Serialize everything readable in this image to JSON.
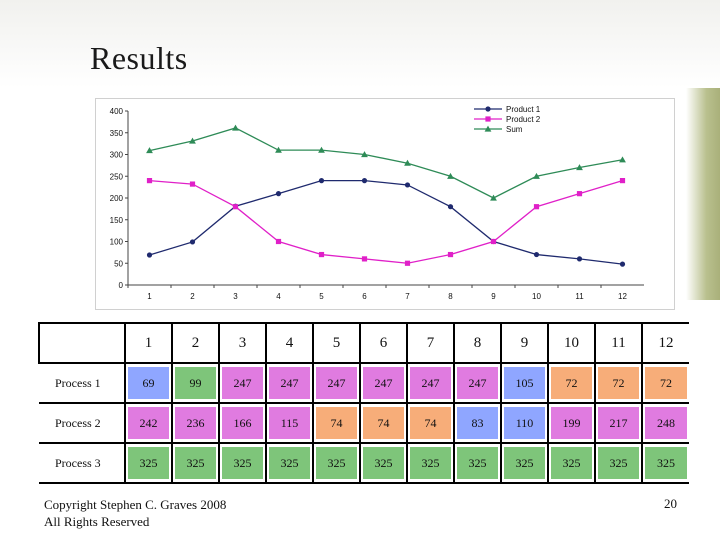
{
  "slide": {
    "title": "Results",
    "copyright_line1": "Copyright Stephen C. Graves 2008",
    "copyright_line2": "All Rights Reserved",
    "page_number": "20"
  },
  "chart_data": {
    "type": "line",
    "x": [
      "1",
      "2",
      "3",
      "4",
      "5",
      "6",
      "7",
      "8",
      "9",
      "10",
      "11",
      "12"
    ],
    "ylim": [
      0,
      400
    ],
    "yticks": [
      "0",
      "50",
      "100",
      "150",
      "200",
      "250",
      "300",
      "350",
      "400"
    ],
    "grid": false,
    "legend_position": "top-right",
    "series": [
      {
        "name": "Product 1",
        "color": "#1f2a6e",
        "marker": "circle",
        "values": [
          69,
          99,
          181,
          210,
          240,
          240,
          230,
          180,
          100,
          70,
          60,
          48
        ]
      },
      {
        "name": "Product 2",
        "color": "#e020c8",
        "marker": "square",
        "values": [
          240,
          232,
          180,
          100,
          70,
          60,
          50,
          70,
          100,
          180,
          210,
          240
        ]
      },
      {
        "name": "Sum",
        "color": "#2e8b57",
        "marker": "triangle",
        "values": [
          309,
          331,
          361,
          310,
          310,
          300,
          280,
          250,
          200,
          250,
          270,
          288
        ]
      }
    ]
  },
  "table": {
    "columns": [
      "1",
      "2",
      "3",
      "4",
      "5",
      "6",
      "7",
      "8",
      "9",
      "10",
      "11",
      "12"
    ],
    "rows": [
      {
        "label": "Process 1",
        "values": [
          "69",
          "99",
          "247",
          "247",
          "247",
          "247",
          "247",
          "247",
          "105",
          "72",
          "72",
          "72"
        ],
        "colors": [
          "blue",
          "green",
          "pink",
          "pink",
          "pink",
          "pink",
          "pink",
          "pink",
          "blue",
          "orange",
          "orange",
          "orange"
        ]
      },
      {
        "label": "Process 2",
        "values": [
          "242",
          "236",
          "166",
          "115",
          "74",
          "74",
          "74",
          "83",
          "110",
          "199",
          "217",
          "248"
        ],
        "colors": [
          "pink",
          "pink",
          "pink",
          "pink",
          "orange",
          "orange",
          "orange",
          "blue",
          "blue",
          "pink",
          "pink",
          "pink"
        ]
      },
      {
        "label": "Process 3",
        "values": [
          "325",
          "325",
          "325",
          "325",
          "325",
          "325",
          "325",
          "325",
          "325",
          "325",
          "325",
          "325"
        ],
        "colors": [
          "green",
          "green",
          "green",
          "green",
          "green",
          "green",
          "green",
          "green",
          "green",
          "green",
          "green",
          "green"
        ]
      }
    ]
  }
}
